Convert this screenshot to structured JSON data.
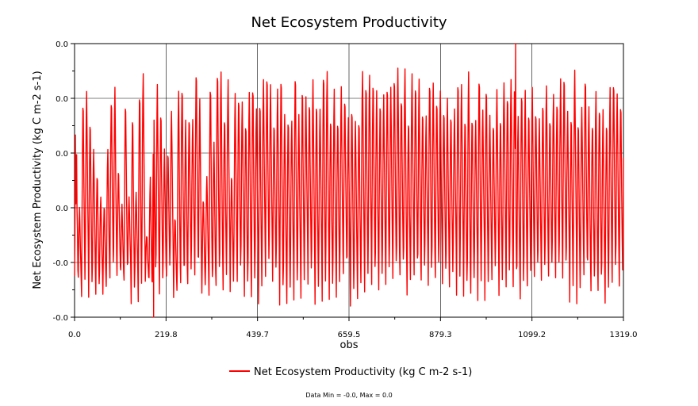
{
  "chart_data": {
    "type": "line",
    "title": "Net Ecosystem Productivity",
    "xlabel": "obs",
    "ylabel": "Net Ecosystem Productivity (kg C m-2 s-1)",
    "xlim": [
      0,
      1319
    ],
    "x_ticks": [
      "0.0",
      "219.8",
      "439.7",
      "659.5",
      "879.3",
      "1099.2",
      "1319.0"
    ],
    "y_ticks": [
      "0.0",
      "0.0",
      "0.0",
      "0.0",
      "-0.0",
      "-0.0"
    ],
    "grid": true,
    "legend": "bottom-center",
    "series": [
      {
        "name": "Net Ecosystem Productivity (kg C m-2 s-1)",
        "color": "#ff0000",
        "description": "dense oscillating signal, roughly one cycle every 8.5 obs",
        "approx_normalized_range": [
          0,
          1
        ],
        "x_min_at": 190,
        "x_max_at": 1060
      }
    ],
    "footnote": "Data Min = -0.0, Max = 0.0"
  }
}
